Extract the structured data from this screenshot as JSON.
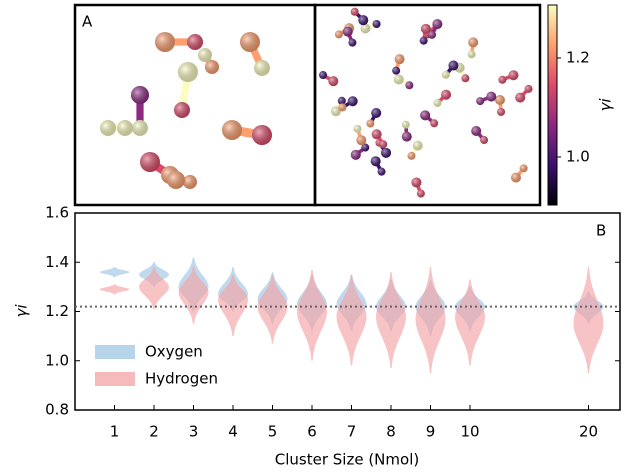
{
  "chart_data": [
    {
      "type": "colorbar",
      "panel_label": "A",
      "label": "γi",
      "colors": [
        "#000004",
        "#3b0f70",
        "#8c2981",
        "#de4968",
        "#fe9f6d",
        "#fcfdbf"
      ],
      "ylim": [
        0.903,
        1.307
      ],
      "yticks": [
        {
          "value": 1.0,
          "label": "1.0"
        },
        {
          "value": 1.2,
          "label": "1.2"
        }
      ]
    },
    {
      "type": "violin",
      "panel_label": "B",
      "ylabel": "γi",
      "xlabel": "Cluster Size (Nmol)",
      "categories": [
        "1",
        "2",
        "3",
        "4",
        "5",
        "6",
        "7",
        "8",
        "9",
        "10",
        null,
        null,
        "20"
      ],
      "ylim": [
        0.8,
        1.6
      ],
      "yticks": [
        {
          "value": 0.8,
          "label": "0.8"
        },
        {
          "value": 1.0,
          "label": "1.0"
        },
        {
          "value": 1.2,
          "label": "1.2"
        },
        {
          "value": 1.4,
          "label": "1.4"
        },
        {
          "value": 1.6,
          "label": "1.6"
        }
      ],
      "hline": 1.22,
      "series": [
        {
          "name": "Oxygen",
          "color": "#9ec5e3",
          "values": [
            1.36,
            1.35,
            1.3,
            1.27,
            1.25,
            1.23,
            1.23,
            1.22,
            1.22,
            1.22,
            null,
            null,
            1.22
          ],
          "min": [
            1.34,
            1.3,
            1.2,
            1.2,
            1.15,
            1.12,
            1.12,
            1.12,
            1.1,
            1.12,
            null,
            null,
            1.15
          ],
          "max": [
            1.38,
            1.4,
            1.42,
            1.38,
            1.36,
            1.35,
            1.35,
            1.33,
            1.33,
            1.3,
            null,
            null,
            1.28
          ]
        },
        {
          "name": "Hydrogen",
          "color": "#f3a3a6",
          "values": [
            1.29,
            1.3,
            1.28,
            1.25,
            1.22,
            1.2,
            1.18,
            1.18,
            1.17,
            1.18,
            null,
            null,
            1.15
          ],
          "min": [
            1.27,
            1.21,
            1.15,
            1.1,
            1.07,
            1.0,
            0.98,
            0.97,
            0.95,
            0.98,
            null,
            null,
            0.95
          ],
          "max": [
            1.31,
            1.38,
            1.38,
            1.35,
            1.35,
            1.37,
            1.35,
            1.36,
            1.38,
            1.33,
            null,
            null,
            1.38
          ]
        }
      ]
    }
  ]
}
